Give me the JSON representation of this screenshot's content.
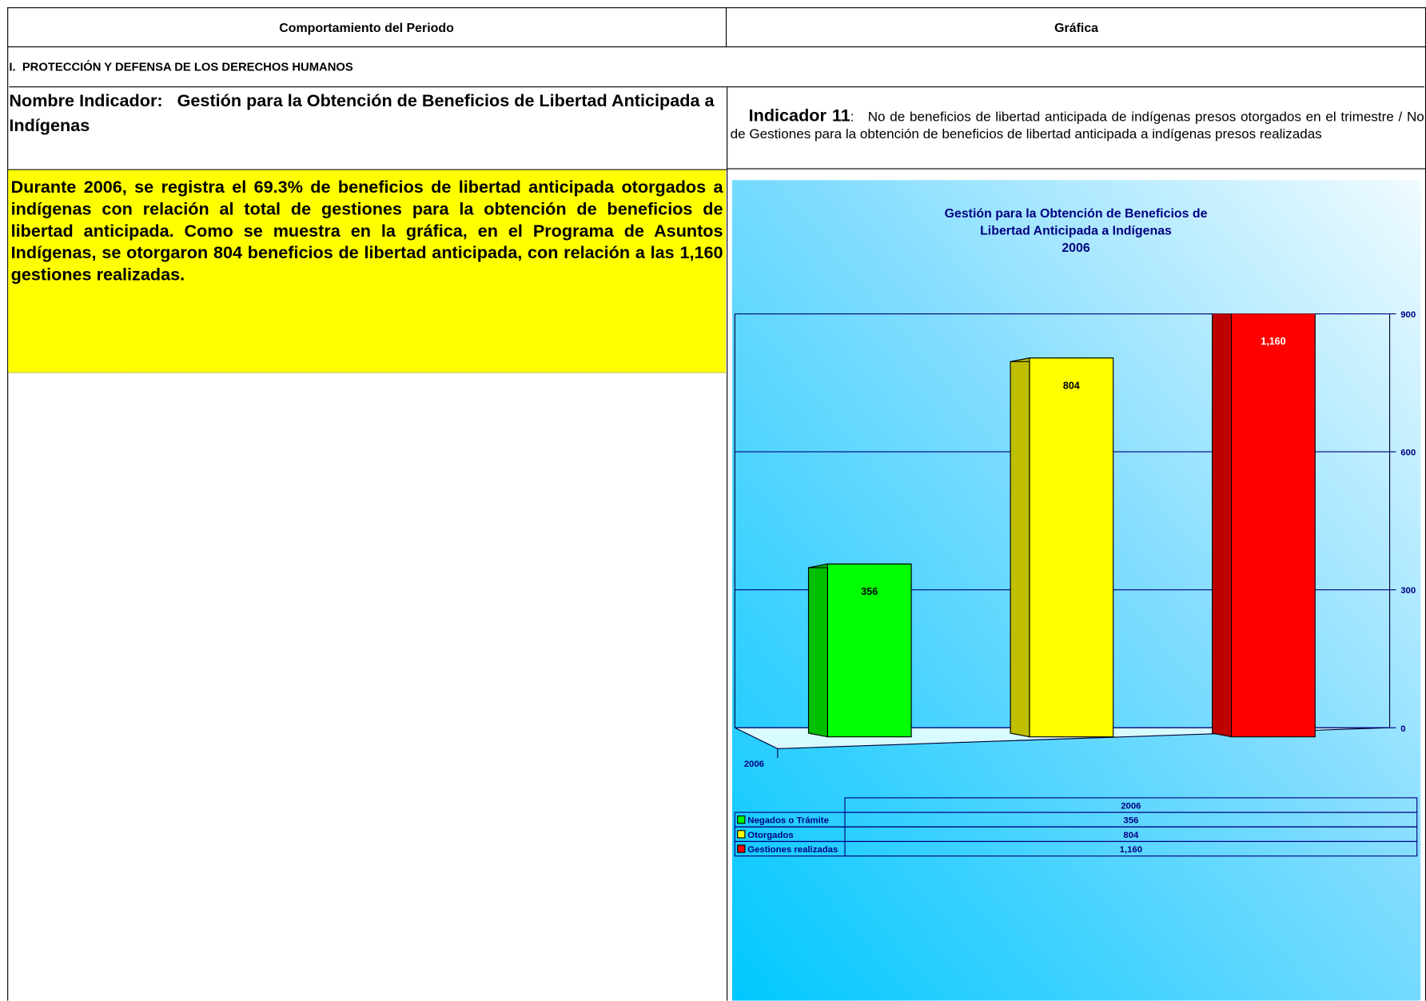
{
  "header": {
    "left": "Comportamiento del Periodo",
    "right": "Gráfica"
  },
  "section": "I.  PROTECCIÓN Y DEFENSA DE LOS DERECHOS HUMANOS",
  "indicator_name": {
    "label": "Nombre Indicador:",
    "text": "Gestión para la Obtención de Beneficios de Libertad Anticipada a Indígenas"
  },
  "indicator": {
    "label": "Indicador 11",
    "text": ":   No de beneficios de libertad anticipada de indígenas presos otorgados en el trimestre / No de Gestiones para la obtención de beneficios de libertad anticipada a indígenas presos realizadas"
  },
  "description": "Durante 2006, se registra el 69.3% de beneficios de libertad anticipada otorgados a indígenas con relación al total de gestiones para la obtención de beneficios de libertad anticipada. Como se muestra en la gráfica, en el Programa de Asuntos Indígenas, se otorgaron 804 beneficios de libertad anticipada,  con relación a las 1,160 gestiones realizadas.",
  "chart_data": {
    "type": "bar3d",
    "title": [
      "Gestión para la Obtención de Beneficios de",
      "Libertad Anticipada a Indígenas",
      "2006"
    ],
    "categories": [
      "2006"
    ],
    "series": [
      {
        "name": "Negados o Trámite",
        "color": "#00ff00",
        "values": [
          356
        ],
        "value_labels": [
          "356"
        ]
      },
      {
        "name": "Otorgados",
        "color": "#ffff00",
        "values": [
          804
        ],
        "value_labels": [
          "804"
        ]
      },
      {
        "name": "Gestiones realizadas",
        "color": "#ff0000",
        "values": [
          1160
        ],
        "value_labels": [
          "1,160"
        ]
      }
    ],
    "ylim": [
      0,
      900
    ],
    "yticks": [
      0,
      300,
      600,
      900
    ],
    "grid": true
  }
}
